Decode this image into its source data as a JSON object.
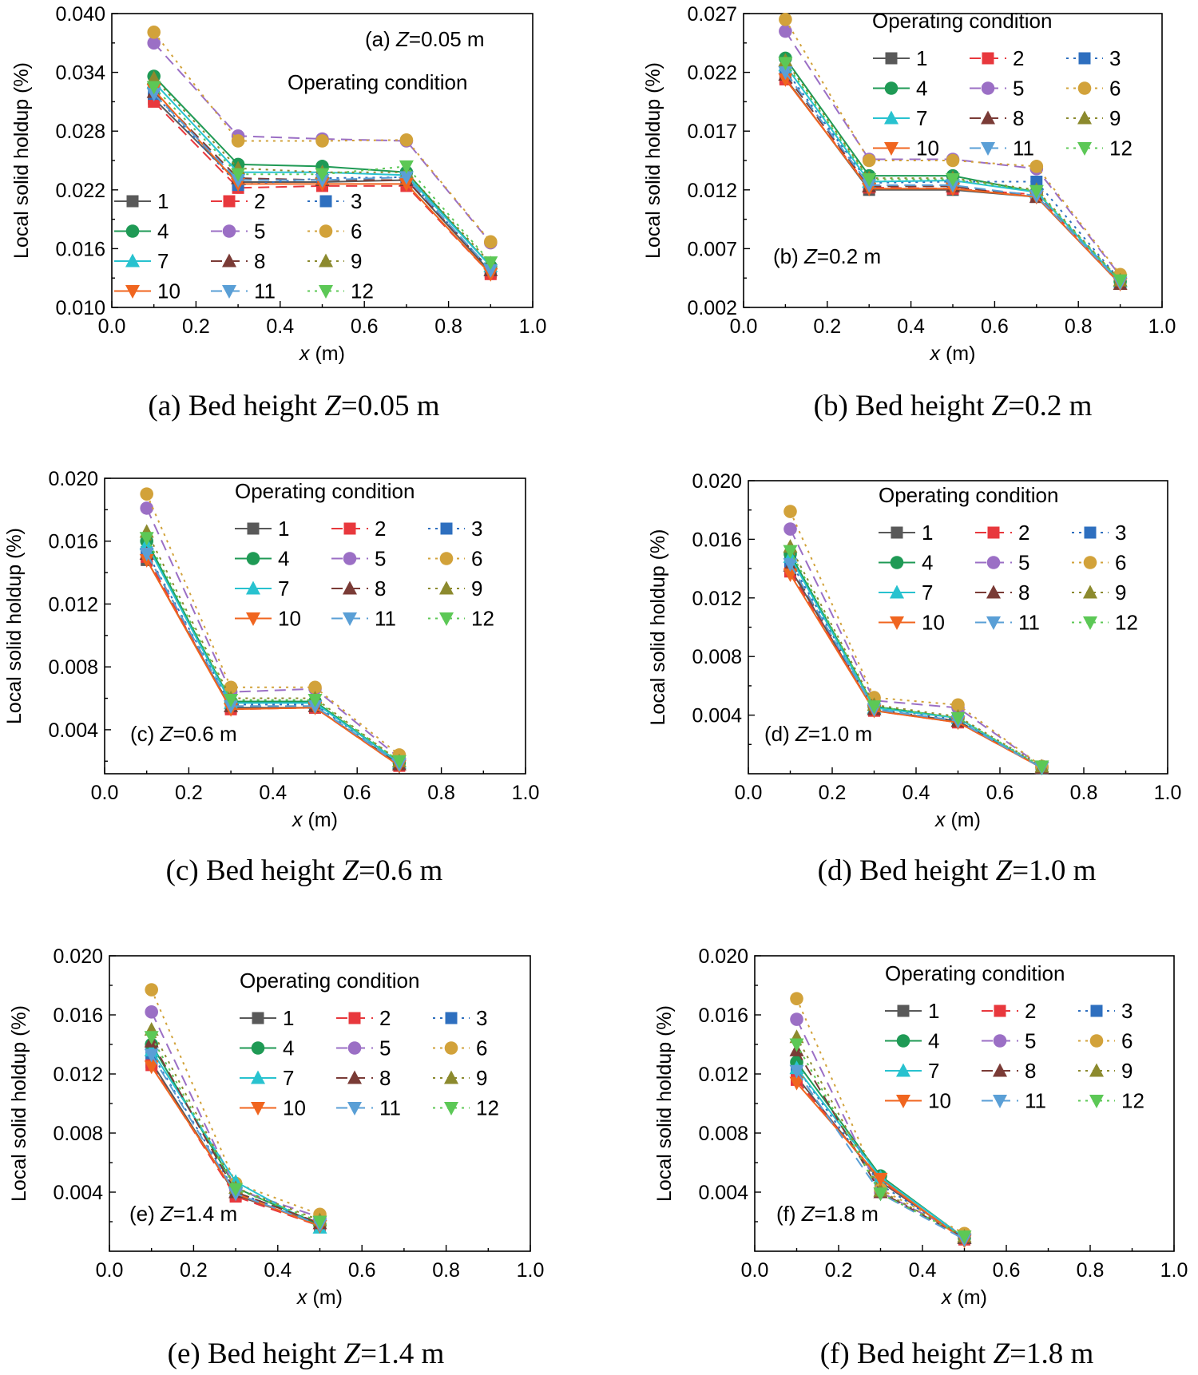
{
  "chart_data": [
    {
      "type": "line",
      "panel": "a",
      "annotation_prefix": "(a) ",
      "annotation_var": "Z",
      "annotation_suffix": "=0.05 m",
      "legend_title": "Operating condition",
      "caption_prefix": "(a) Bed height ",
      "caption_var": "Z",
      "caption_suffix": "=0.05 m",
      "xlabel_var": "x",
      "xlabel_unit": " (m)",
      "ylabel": "Local solid holdup (%)",
      "xlim": [
        0,
        1.0
      ],
      "ylim": [
        0.01,
        0.04
      ],
      "xticks": [
        "0.0",
        "0.2",
        "0.4",
        "0.6",
        "0.8",
        "1.0"
      ],
      "yticks": [
        "0.010",
        "0.016",
        "0.022",
        "0.028",
        "0.034",
        "0.040"
      ],
      "x": [
        0.1,
        0.3,
        0.5,
        0.7,
        0.9
      ],
      "series": [
        {
          "name": "1",
          "values": [
            0.0313,
            0.0228,
            0.0228,
            0.023,
            0.0136
          ]
        },
        {
          "name": "2",
          "values": [
            0.031,
            0.0222,
            0.0224,
            0.0224,
            0.0134
          ]
        },
        {
          "name": "3",
          "values": [
            0.0318,
            0.0225,
            0.0232,
            0.0233,
            0.0138
          ]
        },
        {
          "name": "4",
          "values": [
            0.0336,
            0.0246,
            0.0244,
            0.0238,
            0.0142
          ]
        },
        {
          "name": "5",
          "values": [
            0.037,
            0.0275,
            0.0272,
            0.027,
            0.0166
          ]
        },
        {
          "name": "6",
          "values": [
            0.0381,
            0.027,
            0.027,
            0.0271,
            0.0167
          ]
        },
        {
          "name": "7",
          "values": [
            0.033,
            0.0238,
            0.0238,
            0.0235,
            0.0142
          ]
        },
        {
          "name": "8",
          "values": [
            0.032,
            0.0232,
            0.023,
            0.023,
            0.0138
          ]
        },
        {
          "name": "9",
          "values": [
            0.0334,
            0.0242,
            0.0238,
            0.0238,
            0.0145
          ]
        },
        {
          "name": "10",
          "values": [
            0.0322,
            0.0226,
            0.0226,
            0.0226,
            0.0134
          ]
        },
        {
          "name": "11",
          "values": [
            0.0318,
            0.023,
            0.023,
            0.0233,
            0.0138
          ]
        },
        {
          "name": "12",
          "values": [
            0.0325,
            0.0236,
            0.0236,
            0.0244,
            0.0146
          ]
        }
      ]
    },
    {
      "type": "line",
      "panel": "b",
      "annotation_prefix": "(b) ",
      "annotation_var": "Z",
      "annotation_suffix": "=0.2 m",
      "legend_title": "Operating condition",
      "caption_prefix": "(b) Bed height ",
      "caption_var": "Z",
      "caption_suffix": "=0.2 m",
      "xlabel_var": "x",
      "xlabel_unit": " (m)",
      "ylabel": "Local solid holdup (%)",
      "xlim": [
        0,
        1.0
      ],
      "ylim": [
        0.002,
        0.027
      ],
      "xticks": [
        "0.0",
        "0.2",
        "0.4",
        "0.6",
        "0.8",
        "1.0"
      ],
      "yticks": [
        "0.002",
        "0.007",
        "0.012",
        "0.017",
        "0.022",
        "0.027"
      ],
      "x": [
        0.1,
        0.3,
        0.5,
        0.7,
        0.9
      ],
      "series": [
        {
          "name": "1",
          "values": [
            0.0215,
            0.012,
            0.012,
            0.0114,
            0.004
          ]
        },
        {
          "name": "2",
          "values": [
            0.0214,
            0.0122,
            0.0121,
            0.0116,
            0.0041
          ]
        },
        {
          "name": "3",
          "values": [
            0.0222,
            0.0126,
            0.0127,
            0.0127,
            0.0043
          ]
        },
        {
          "name": "4",
          "values": [
            0.0232,
            0.0132,
            0.0132,
            0.0118,
            0.0042
          ]
        },
        {
          "name": "5",
          "values": [
            0.0255,
            0.0146,
            0.0146,
            0.0138,
            0.0047
          ]
        },
        {
          "name": "6",
          "values": [
            0.0265,
            0.0145,
            0.0145,
            0.014,
            0.0048
          ]
        },
        {
          "name": "7",
          "values": [
            0.0226,
            0.0127,
            0.0128,
            0.0118,
            0.0042
          ]
        },
        {
          "name": "8",
          "values": [
            0.0218,
            0.0123,
            0.0123,
            0.0114,
            0.004
          ]
        },
        {
          "name": "9",
          "values": [
            0.023,
            0.013,
            0.013,
            0.012,
            0.0043
          ]
        },
        {
          "name": "10",
          "values": [
            0.0214,
            0.0121,
            0.0121,
            0.0114,
            0.004
          ]
        },
        {
          "name": "11",
          "values": [
            0.022,
            0.0124,
            0.0124,
            0.0115,
            0.0041
          ]
        },
        {
          "name": "12",
          "values": [
            0.0228,
            0.0129,
            0.0129,
            0.0119,
            0.0043
          ]
        }
      ]
    },
    {
      "type": "line",
      "panel": "c",
      "annotation_prefix": "(c) ",
      "annotation_var": "Z",
      "annotation_suffix": "=0.6 m",
      "legend_title": "Operating condition",
      "caption_prefix": "(c) Bed height ",
      "caption_var": "Z",
      "caption_suffix": "=0.6 m",
      "xlabel_var": "x",
      "xlabel_unit": " (m)",
      "ylabel": "Local solid holdup (%)",
      "xlim": [
        0,
        1.0
      ],
      "ylim": [
        0.0012,
        0.02
      ],
      "xticks": [
        "0.0",
        "0.2",
        "0.4",
        "0.6",
        "0.8",
        "1.0"
      ],
      "yticks": [
        "0.004",
        "0.008",
        "0.012",
        "0.016",
        "0.020"
      ],
      "ytick_values": [
        0.004,
        0.008,
        0.012,
        0.016,
        0.02
      ],
      "x": [
        0.1,
        0.3,
        0.5,
        0.7
      ],
      "series": [
        {
          "name": "1",
          "values": [
            0.0148,
            0.0054,
            0.0054,
            0.0018
          ]
        },
        {
          "name": "2",
          "values": [
            0.015,
            0.0053,
            0.0054,
            0.0017
          ]
        },
        {
          "name": "3",
          "values": [
            0.0153,
            0.0056,
            0.0056,
            0.0019
          ]
        },
        {
          "name": "4",
          "values": [
            0.016,
            0.0058,
            0.0058,
            0.0019
          ]
        },
        {
          "name": "5",
          "values": [
            0.0181,
            0.0064,
            0.0066,
            0.0022
          ]
        },
        {
          "name": "6",
          "values": [
            0.019,
            0.0067,
            0.0067,
            0.0024
          ]
        },
        {
          "name": "7",
          "values": [
            0.0158,
            0.0057,
            0.0057,
            0.0019
          ]
        },
        {
          "name": "8",
          "values": [
            0.0152,
            0.0055,
            0.0055,
            0.0018
          ]
        },
        {
          "name": "9",
          "values": [
            0.0166,
            0.006,
            0.006,
            0.002
          ]
        },
        {
          "name": "10",
          "values": [
            0.0148,
            0.0053,
            0.0054,
            0.0017
          ]
        },
        {
          "name": "11",
          "values": [
            0.0152,
            0.0055,
            0.0055,
            0.0018
          ]
        },
        {
          "name": "12",
          "values": [
            0.0162,
            0.0059,
            0.0059,
            0.002
          ]
        }
      ]
    },
    {
      "type": "line",
      "panel": "d",
      "annotation_prefix": "(d) ",
      "annotation_var": "Z",
      "annotation_suffix": "=1.0 m",
      "legend_title": "Operating condition",
      "caption_prefix": "(d) Bed height ",
      "caption_var": "Z",
      "caption_suffix": "=1.0 m",
      "xlabel_var": "x",
      "xlabel_unit": " (m)",
      "ylabel": "Local solid holdup (%)",
      "xlim": [
        0,
        1.0
      ],
      "ylim": [
        0.0,
        0.02
      ],
      "xticks": [
        "0.0",
        "0.2",
        "0.4",
        "0.6",
        "0.8",
        "1.0"
      ],
      "yticks": [
        "0.004",
        "0.008",
        "0.012",
        "0.016",
        "0.020"
      ],
      "ytick_values": [
        0.004,
        0.008,
        0.012,
        0.016,
        0.02
      ],
      "x": [
        0.1,
        0.3,
        0.5,
        0.7
      ],
      "series": [
        {
          "name": "1",
          "values": [
            0.014,
            0.0043,
            0.0036,
            0.0004
          ]
        },
        {
          "name": "2",
          "values": [
            0.0138,
            0.0043,
            0.0035,
            0.0004
          ]
        },
        {
          "name": "3",
          "values": [
            0.0145,
            0.0045,
            0.0037,
            0.0004
          ]
        },
        {
          "name": "4",
          "values": [
            0.015,
            0.0046,
            0.0038,
            0.0004
          ]
        },
        {
          "name": "5",
          "values": [
            0.0167,
            0.005,
            0.0045,
            0.0005
          ]
        },
        {
          "name": "6",
          "values": [
            0.0179,
            0.0052,
            0.0047,
            0.0005
          ]
        },
        {
          "name": "7",
          "values": [
            0.0148,
            0.0045,
            0.0038,
            0.0004
          ]
        },
        {
          "name": "8",
          "values": [
            0.0142,
            0.0044,
            0.0036,
            0.0004
          ]
        },
        {
          "name": "9",
          "values": [
            0.0155,
            0.0047,
            0.0039,
            0.0005
          ]
        },
        {
          "name": "10",
          "values": [
            0.0136,
            0.0043,
            0.0035,
            0.0004
          ]
        },
        {
          "name": "11",
          "values": [
            0.0143,
            0.0044,
            0.0036,
            0.0004
          ]
        },
        {
          "name": "12",
          "values": [
            0.0152,
            0.0046,
            0.0038,
            0.0005
          ]
        }
      ]
    },
    {
      "type": "line",
      "panel": "e",
      "annotation_prefix": "(e) ",
      "annotation_var": "Z",
      "annotation_suffix": "=1.4 m",
      "legend_title": "Operating condition",
      "caption_prefix": "(e) Bed height ",
      "caption_var": "Z",
      "caption_suffix": "=1.4 m",
      "xlabel_var": "x",
      "xlabel_unit": " (m)",
      "ylabel": "Local solid holdup (%)",
      "xlim": [
        0,
        1.0
      ],
      "ylim": [
        0.0,
        0.02
      ],
      "xticks": [
        "0.0",
        "0.2",
        "0.4",
        "0.6",
        "0.8",
        "1.0"
      ],
      "yticks": [
        "0.004",
        "0.008",
        "0.012",
        "0.016",
        "0.020"
      ],
      "ytick_values": [
        0.004,
        0.008,
        0.012,
        0.016,
        0.02
      ],
      "x": [
        0.1,
        0.3,
        0.5
      ],
      "series": [
        {
          "name": "1",
          "values": [
            0.0128,
            0.0038,
            0.0018
          ]
        },
        {
          "name": "2",
          "values": [
            0.0126,
            0.0037,
            0.0017
          ]
        },
        {
          "name": "3",
          "values": [
            0.0134,
            0.004,
            0.0019
          ]
        },
        {
          "name": "4",
          "values": [
            0.014,
            0.0043,
            0.0018
          ]
        },
        {
          "name": "5",
          "values": [
            0.0162,
            0.0042,
            0.0023
          ]
        },
        {
          "name": "6",
          "values": [
            0.0177,
            0.0046,
            0.0025
          ]
        },
        {
          "name": "7",
          "values": [
            0.0136,
            0.0047,
            0.0016
          ]
        },
        {
          "name": "8",
          "values": [
            0.0142,
            0.004,
            0.0019
          ]
        },
        {
          "name": "9",
          "values": [
            0.015,
            0.0043,
            0.0021
          ]
        },
        {
          "name": "10",
          "values": [
            0.0125,
            0.0039,
            0.0017
          ]
        },
        {
          "name": "11",
          "values": [
            0.0133,
            0.0039,
            0.0018
          ]
        },
        {
          "name": "12",
          "values": [
            0.0145,
            0.0042,
            0.002
          ]
        }
      ]
    },
    {
      "type": "line",
      "panel": "f",
      "annotation_prefix": "(f) ",
      "annotation_var": "Z",
      "annotation_suffix": "=1.8 m",
      "legend_title": "Operating condition",
      "caption_prefix": "(f) Bed height ",
      "caption_var": "Z",
      "caption_suffix": "=1.8 m",
      "xlabel_var": "x",
      "xlabel_unit": " (m)",
      "ylabel": "Local solid holdup (%)",
      "xlim": [
        0,
        1.0
      ],
      "ylim": [
        0.0,
        0.02
      ],
      "xticks": [
        "0.0",
        "0.2",
        "0.4",
        "0.6",
        "0.8",
        "1.0"
      ],
      "yticks": [
        "0.004",
        "0.008",
        "0.012",
        "0.016",
        "0.020"
      ],
      "ytick_values": [
        0.004,
        0.008,
        0.012,
        0.016,
        0.02
      ],
      "x": [
        0.1,
        0.3,
        0.5
      ],
      "series": [
        {
          "name": "1",
          "values": [
            0.0118,
            0.0047,
            0.0008
          ]
        },
        {
          "name": "2",
          "values": [
            0.0116,
            0.0048,
            0.0008
          ]
        },
        {
          "name": "3",
          "values": [
            0.0124,
            0.0045,
            0.0009
          ]
        },
        {
          "name": "4",
          "values": [
            0.0128,
            0.0051,
            0.0009
          ]
        },
        {
          "name": "5",
          "values": [
            0.0157,
            0.004,
            0.0011
          ]
        },
        {
          "name": "6",
          "values": [
            0.0171,
            0.0042,
            0.0012
          ]
        },
        {
          "name": "7",
          "values": [
            0.0124,
            0.005,
            0.0009
          ]
        },
        {
          "name": "8",
          "values": [
            0.0136,
            0.004,
            0.0009
          ]
        },
        {
          "name": "9",
          "values": [
            0.0145,
            0.0041,
            0.001
          ]
        },
        {
          "name": "10",
          "values": [
            0.0114,
            0.0049,
            0.0007
          ]
        },
        {
          "name": "11",
          "values": [
            0.0122,
            0.0039,
            0.0008
          ]
        },
        {
          "name": "12",
          "values": [
            0.014,
            0.0039,
            0.001
          ]
        }
      ]
    }
  ],
  "series_styles": [
    {
      "color": "#595959",
      "marker": "square",
      "dash": "solid"
    },
    {
      "color": "#e8383d",
      "marker": "square",
      "dash": "dash"
    },
    {
      "color": "#2e6fbf",
      "marker": "square",
      "dash": "dot"
    },
    {
      "color": "#1f9a55",
      "marker": "circle",
      "dash": "solid"
    },
    {
      "color": "#9b6fc5",
      "marker": "circle",
      "dash": "dash"
    },
    {
      "color": "#d2a23a",
      "marker": "circle",
      "dash": "dot"
    },
    {
      "color": "#28c2cf",
      "marker": "triangle-up",
      "dash": "solid"
    },
    {
      "color": "#7a3b36",
      "marker": "triangle-up",
      "dash": "dash"
    },
    {
      "color": "#8c8a2e",
      "marker": "triangle-up",
      "dash": "dot"
    },
    {
      "color": "#f0651f",
      "marker": "triangle-down",
      "dash": "solid"
    },
    {
      "color": "#5a9fd6",
      "marker": "triangle-down",
      "dash": "dash"
    },
    {
      "color": "#5cc856",
      "marker": "triangle-down",
      "dash": "dot"
    }
  ]
}
